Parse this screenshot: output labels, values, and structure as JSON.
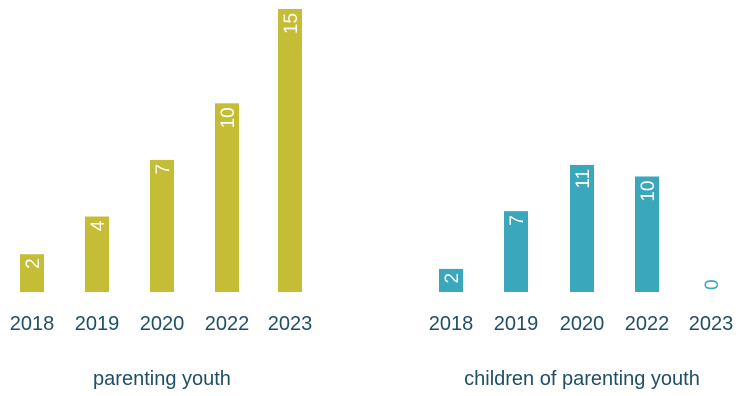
{
  "chart_data": [
    {
      "type": "bar",
      "categories": [
        "2018",
        "2019",
        "2020",
        "2022",
        "2023"
      ],
      "values": [
        2,
        4,
        7,
        10,
        15
      ],
      "xlabel": "parenting youth",
      "color": "#c5bd36",
      "grid": false,
      "legend": "none"
    },
    {
      "type": "bar",
      "categories": [
        "2018",
        "2019",
        "2020",
        "2022",
        "2023"
      ],
      "values": [
        2,
        7,
        11,
        10,
        0
      ],
      "xlabel": "children of parenting youth",
      "color": "#3aa7bd",
      "grid": false,
      "legend": "none"
    }
  ],
  "colors": {
    "axis_text": "#1f4f66",
    "value_label": "#ffffff"
  }
}
